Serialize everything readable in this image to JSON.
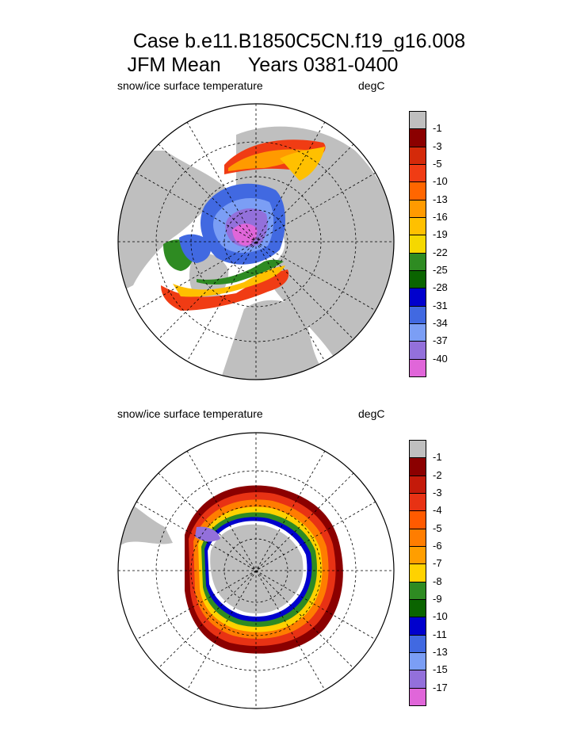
{
  "header": {
    "title_line1": "Case b.e11.B1850C5CN.f19_g16.008",
    "title_line2": "JFM Mean     Years 0381-0400"
  },
  "colors": {
    "land": "#bfbfbf",
    "ocean": "#ffffff",
    "grid": "#000000"
  },
  "chart_data": [
    {
      "type": "heatmap",
      "panel": "north",
      "left_label": "snow/ice surface temperature",
      "right_label": "degC",
      "colorbar": {
        "labels": [
          "-1",
          "-3",
          "-5",
          "-10",
          "-13",
          "-16",
          "-19",
          "-22",
          "-25",
          "-28",
          "-31",
          "-34",
          "-37",
          "-40"
        ],
        "colors": [
          "#bfbfbf",
          "#8b0000",
          "#d42a0a",
          "#f03c14",
          "#ff6600",
          "#ff9a00",
          "#ffc000",
          "#f5d800",
          "#2e8b22",
          "#0a6400",
          "#0000cd",
          "#4169e1",
          "#7b9ef5",
          "#9370db",
          "#e066d9"
        ]
      }
    },
    {
      "type": "heatmap",
      "panel": "south",
      "left_label": "snow/ice surface temperature",
      "right_label": "degC",
      "colorbar": {
        "labels": [
          "-1",
          "-2",
          "-3",
          "-4",
          "-5",
          "-6",
          "-7",
          "-8",
          "-9",
          "-10",
          "-11",
          "-13",
          "-15",
          "-17"
        ],
        "colors": [
          "#bfbfbf",
          "#8b0000",
          "#c41a0a",
          "#e83214",
          "#ff5a00",
          "#ff7d00",
          "#ff9e00",
          "#ffd200",
          "#2e8b22",
          "#0a6400",
          "#0000cd",
          "#4169e1",
          "#7b9ef5",
          "#9370db",
          "#e066d9"
        ]
      }
    }
  ]
}
